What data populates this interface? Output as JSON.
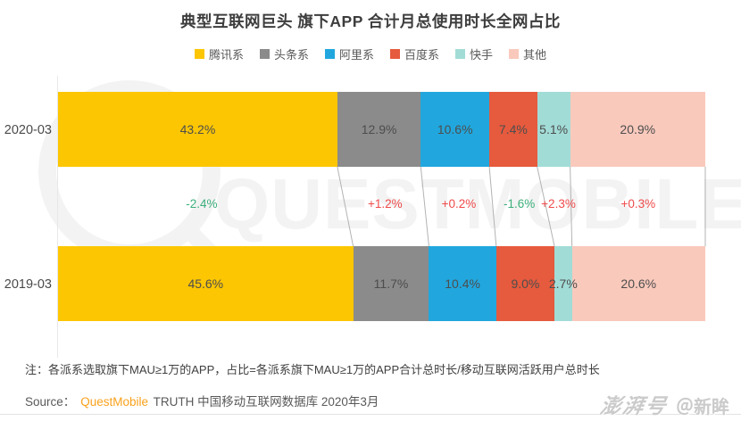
{
  "title": "典型互联网巨头 旗下APP 合计月总使用时长全网占比",
  "chart_data": {
    "type": "bar",
    "variant": "horizontal-stacked-comparison",
    "title": "典型互联网巨头 旗下APP 合计月总使用时长全网占比",
    "unit": "%",
    "x_axis": {
      "min": 0,
      "max": 100,
      "unit": "%",
      "grid": false
    },
    "legend_position": "top",
    "categories": [
      "2020-03",
      "2019-03"
    ],
    "series": [
      {
        "name": "腾讯系",
        "color": "#FCC602",
        "values": [
          43.2,
          45.6
        ],
        "labels": [
          "43.2%",
          "45.6%"
        ]
      },
      {
        "name": "头条系",
        "color": "#8B8B8B",
        "values": [
          12.9,
          11.7
        ],
        "labels": [
          "12.9%",
          "11.7%"
        ]
      },
      {
        "name": "阿里系",
        "color": "#21A7DE",
        "values": [
          10.6,
          10.4
        ],
        "labels": [
          "10.6%",
          "10.4%"
        ]
      },
      {
        "name": "百度系",
        "color": "#E65A3D",
        "values": [
          7.4,
          9.0
        ],
        "labels": [
          "7.4%",
          "9.0%"
        ]
      },
      {
        "name": "快手",
        "color": "#A2DCD7",
        "values": [
          5.1,
          2.7
        ],
        "labels": [
          "5.1%",
          "2.7%"
        ]
      },
      {
        "name": "其他",
        "color": "#F9C9BC",
        "values": [
          20.9,
          20.6
        ],
        "labels": [
          "20.9%",
          "20.6%"
        ]
      }
    ],
    "changes": [
      {
        "label": "-2.4%",
        "direction": "down",
        "color": "#3BAE7A"
      },
      {
        "label": "+1.2%",
        "direction": "up",
        "color": "#F04B4B"
      },
      {
        "label": "+0.2%",
        "direction": "up",
        "color": "#F04B4B"
      },
      {
        "label": "-1.6%",
        "direction": "down",
        "color": "#3BAE7A"
      },
      {
        "label": "+2.3%",
        "direction": "up",
        "color": "#F04B4B"
      },
      {
        "label": "+0.3%",
        "direction": "up",
        "color": "#F04B4B"
      }
    ]
  },
  "note": "注：各派系选取旗下MAU≥1万的APP，占比=各派系旗下MAU≥1万的APP合计总时长/移动互联网活跃用户总时长",
  "source": {
    "prefix": "Source：",
    "brand": "QuestMobile",
    "brand_color": "#F9A11B",
    "suffix": "TRUTH 中国移动互联网数据库 2020年3月"
  },
  "watermark": {
    "logo_text": "QUESTMOBILE"
  },
  "footer_watermark": {
    "brand": "澎湃号",
    "handle": "＠新眸"
  }
}
